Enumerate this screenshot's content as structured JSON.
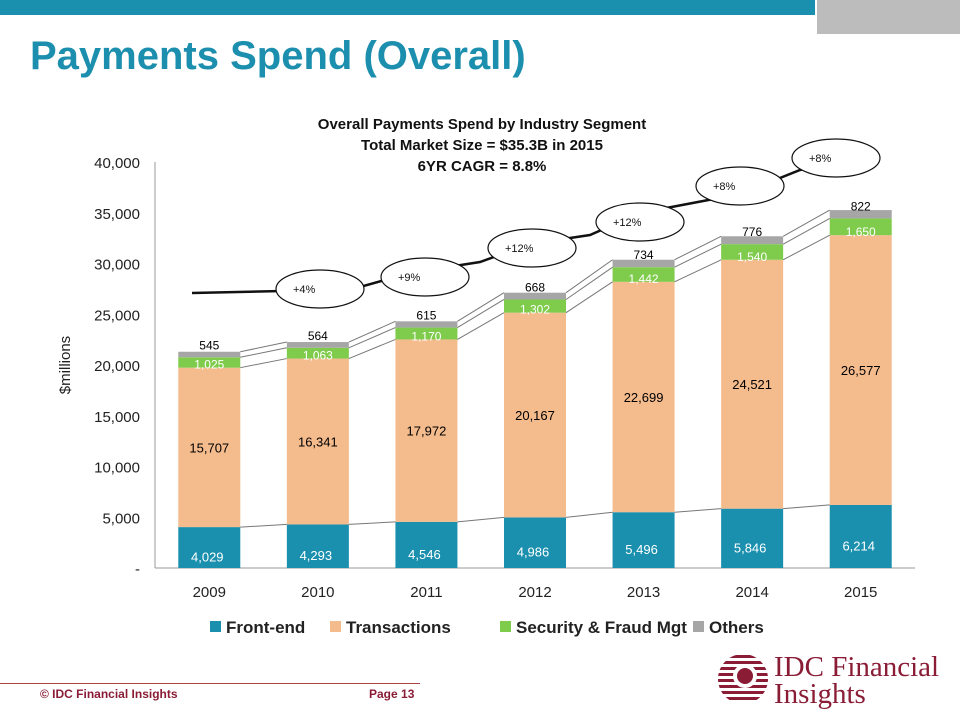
{
  "slide": {
    "title": "Payments Spend (Overall)",
    "footer_left": "© IDC Financial Insights",
    "footer_right": "Page 13",
    "brand_colors": {
      "bar": "#1a8fae",
      "title": "#1d8fae",
      "brand": "#8a1c35"
    }
  },
  "logo": {
    "line1": "IDC Financial",
    "line2": "Insights"
  },
  "chart_data": {
    "type": "bar",
    "stacked": true,
    "title_lines": [
      "Overall Payments Spend by Industry Segment",
      "Total Market Size = $35.3B in 2015",
      "6YR CAGR = 8.8%"
    ],
    "ylabel": "$millions",
    "ylim": [
      0,
      40000
    ],
    "yticks": [
      0,
      5000,
      10000,
      15000,
      20000,
      25000,
      30000,
      35000,
      40000
    ],
    "ytick_labels": [
      "-",
      "5,000",
      "10,000",
      "15,000",
      "20,000",
      "25,000",
      "30,000",
      "35,000",
      "40,000"
    ],
    "categories": [
      "2009",
      "2010",
      "2011",
      "2012",
      "2013",
      "2014",
      "2015"
    ],
    "series": [
      {
        "name": "Front-end",
        "color": "#1a8fae",
        "label_color": "#ffffff",
        "values": [
          4029,
          4293,
          4546,
          4986,
          5496,
          5846,
          6214
        ],
        "labels": [
          "4,029",
          "4,293",
          "4,546",
          "4,986",
          "5,496",
          "5,846",
          "6,214"
        ]
      },
      {
        "name": "Transactions",
        "color": "#f4bb8d",
        "label_color": "#000000",
        "values": [
          15707,
          16341,
          17972,
          20167,
          22699,
          24521,
          26577
        ],
        "labels": [
          "15,707",
          "16,341",
          "17,972",
          "20,167",
          "22,699",
          "24,521",
          "26,577"
        ]
      },
      {
        "name": "Security & Fraud Mgt",
        "color": "#7fcc4d",
        "label_color": "#ffffff",
        "values": [
          1025,
          1063,
          1170,
          1302,
          1442,
          1540,
          1650
        ],
        "labels": [
          "1,025",
          "1,063",
          "1,170",
          "1,302",
          "1,442",
          "1,540",
          "1,650"
        ]
      },
      {
        "name": "Others",
        "color": "#a6a6a6",
        "label_color": "#000000",
        "values": [
          545,
          564,
          615,
          668,
          734,
          776,
          822
        ],
        "labels": [
          "545",
          "564",
          "615",
          "668",
          "734",
          "776",
          "822"
        ]
      }
    ],
    "growth_annotations": [
      "+4%",
      "+9%",
      "+12%",
      "+12%",
      "+8%",
      "+8%"
    ],
    "legend_position": "bottom",
    "grid": false
  }
}
